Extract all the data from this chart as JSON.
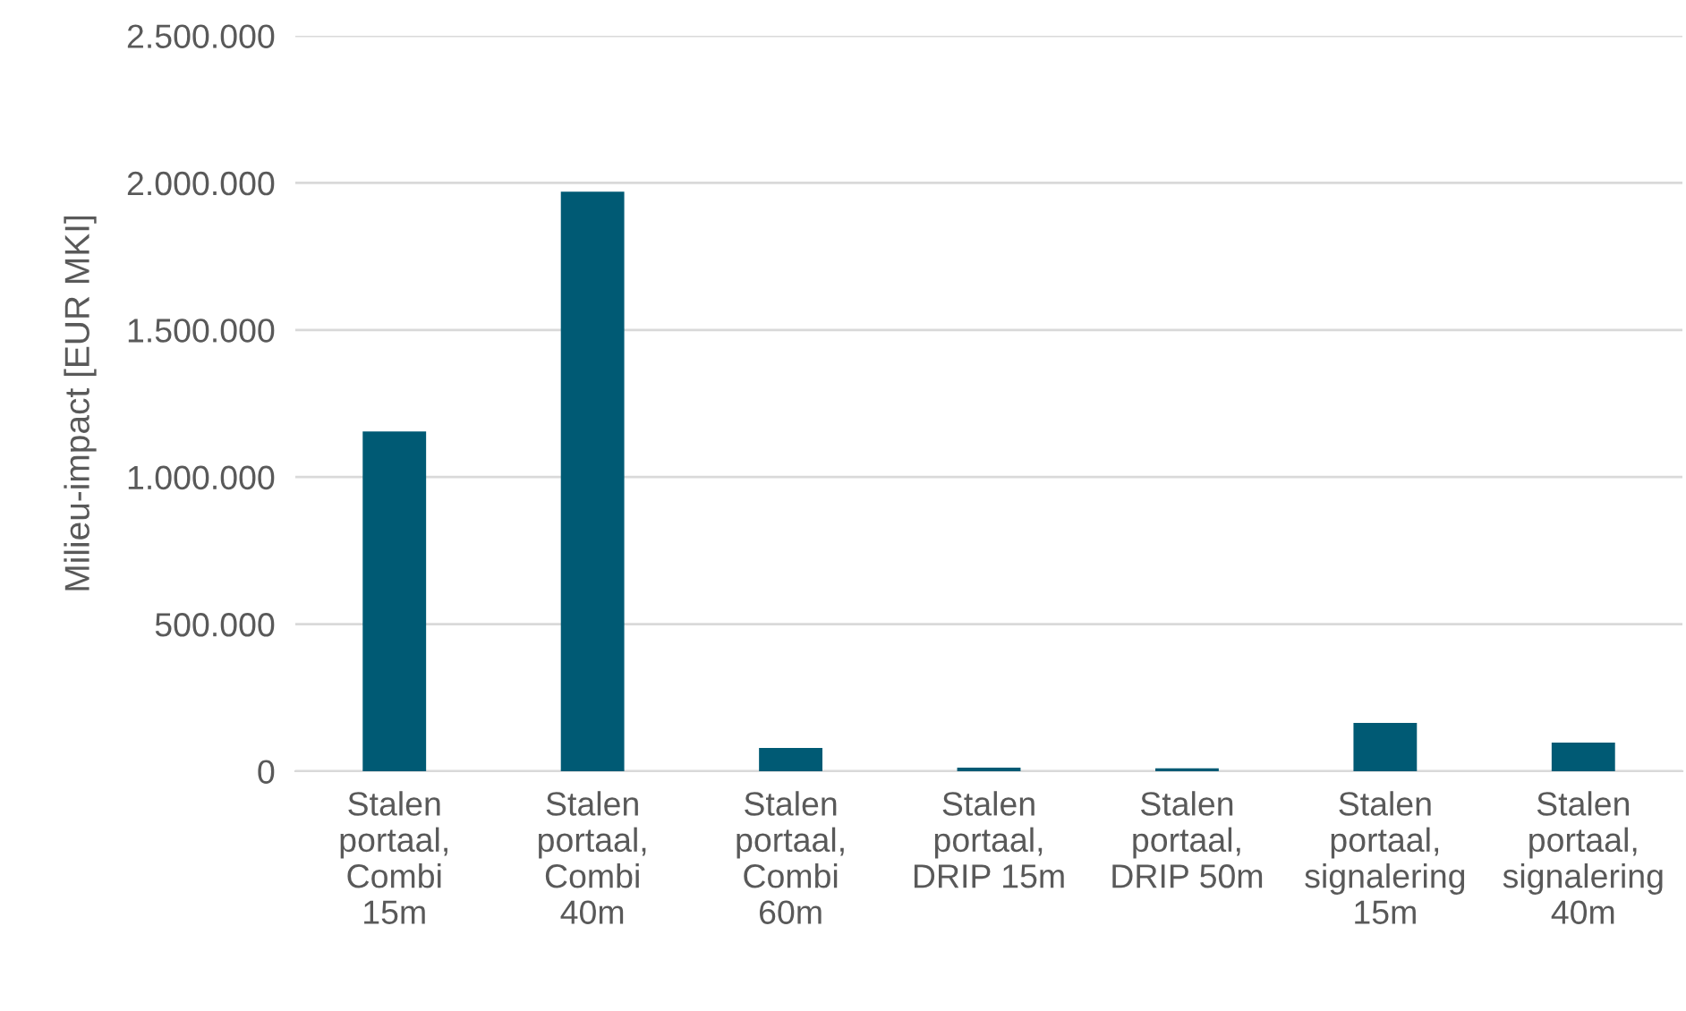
{
  "chart_data": {
    "type": "bar",
    "ylabel": "Milieu-impact [EUR MKI]",
    "categories": [
      "Stalen\nportaal,\nCombi\n15m",
      "Stalen\nportaal,\nCombi\n40m",
      "Stalen\nportaal,\nCombi\n60m",
      "Stalen\nportaal,\nDRIP 15m",
      "Stalen\nportaal,\nDRIP 50m",
      "Stalen\nportaal,\nsignalering\n15m",
      "Stalen\nportaal,\nsignalering\n40m"
    ],
    "values": [
      1155000,
      1970000,
      79000,
      12000,
      10000,
      164000,
      97000
    ],
    "color": "#005a74",
    "ylim": [
      0,
      2500000
    ],
    "yticks": [
      0,
      {
        "value": 500000,
        "label": "500.000"
      },
      {
        "value": 1000000,
        "label": "1.000.000"
      },
      {
        "value": 1500000,
        "label": "1.500.000"
      },
      {
        "value": 2000000,
        "label": "2.000.000"
      },
      {
        "value": 2500000,
        "label": "2.500.000"
      }
    ],
    "grid": "y"
  }
}
